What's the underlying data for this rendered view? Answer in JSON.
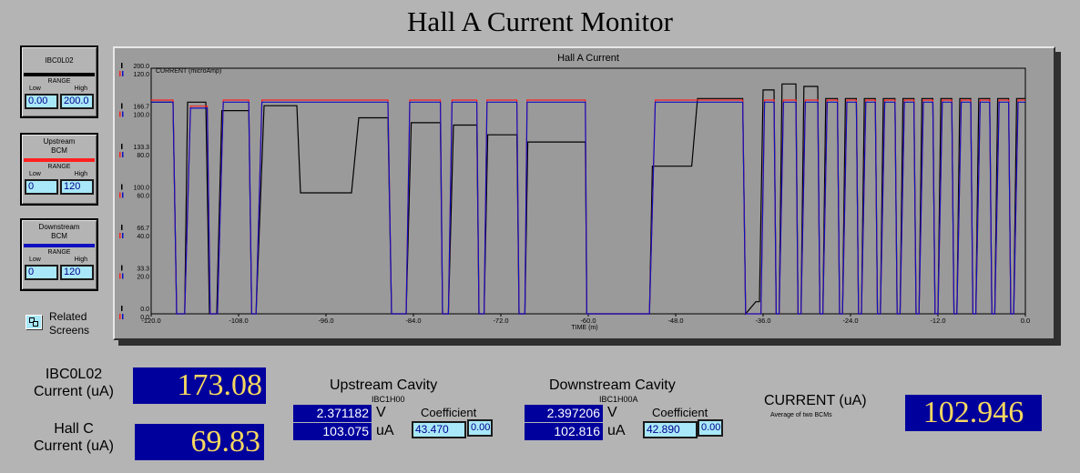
{
  "title": "Hall A Current Monitor",
  "legend": [
    {
      "name_lines": [
        "IBC0L02"
      ],
      "color": "#000000",
      "range_label": "RANGE",
      "low_label": "Low",
      "high_label": "High",
      "low": "0.00",
      "high": "200.0"
    },
    {
      "name_lines": [
        "Upstream",
        "BCM"
      ],
      "color": "#ff2020",
      "range_label": "RANGE",
      "low_label": "Low",
      "high_label": "High",
      "low": "0",
      "high": "120"
    },
    {
      "name_lines": [
        "Downstream",
        "BCM"
      ],
      "color": "#1010c0",
      "range_label": "RANGE",
      "low_label": "Low",
      "high_label": "High",
      "low": "0",
      "high": "120"
    }
  ],
  "related": {
    "label_line1": "Related",
    "label_line2": "Screens"
  },
  "chart_data": {
    "type": "line",
    "title": "Hall A Current",
    "ylabel": "CURRENT (microAmp)",
    "xlabel": "TIME (m)",
    "xlim": [
      -120,
      0
    ],
    "x_ticks": [
      "-120.0",
      "-108.0",
      "-96.0",
      "-84.0",
      "-72.0",
      "-60.0",
      "-48.0",
      "-36.0",
      "-24.0",
      "-12.0",
      "0.0"
    ],
    "y_ticks_series1": [
      "200.0",
      "166.7",
      "133.3",
      "100.0",
      "66.7",
      "33.3",
      "0.0"
    ],
    "y_ticks_series2": [
      "120.0",
      "100.0",
      "80.0",
      "60.0",
      "40.0",
      "20.0",
      "0.0"
    ],
    "series": [
      {
        "name": "IBC0L02",
        "color": "#000000",
        "ylim": [
          0,
          200
        ],
        "points": [
          [
            -120,
            175
          ],
          [
            -117,
            175
          ],
          [
            -116.5,
            0
          ],
          [
            -115.4,
            0
          ],
          [
            -115,
            175
          ],
          [
            -112.5,
            175
          ],
          [
            -112,
            0
          ],
          [
            -111,
            0
          ],
          [
            -110.3,
            168
          ],
          [
            -106.6,
            168
          ],
          [
            -106.2,
            0
          ],
          [
            -105.6,
            0
          ],
          [
            -104.5,
            172
          ],
          [
            -100,
            172
          ],
          [
            -99.5,
            100
          ],
          [
            -92.5,
            100
          ],
          [
            -91.5,
            162
          ],
          [
            -87.5,
            162
          ],
          [
            -87,
            0
          ],
          [
            -85,
            0
          ],
          [
            -84.3,
            158
          ],
          [
            -80.3,
            158
          ],
          [
            -80,
            0
          ],
          [
            -79.2,
            0
          ],
          [
            -78.5,
            156
          ],
          [
            -75.3,
            156
          ],
          [
            -75,
            0
          ],
          [
            -74.3,
            0
          ],
          [
            -73.8,
            148
          ],
          [
            -69.8,
            148
          ],
          [
            -69.5,
            0
          ],
          [
            -68.7,
            0
          ],
          [
            -68.3,
            142
          ],
          [
            -60.4,
            142
          ],
          [
            -60.2,
            0
          ],
          [
            -51.6,
            0
          ],
          [
            -51.2,
            122
          ],
          [
            -45.8,
            122
          ],
          [
            -45,
            178
          ],
          [
            -38.8,
            178
          ],
          [
            -38.4,
            0
          ],
          [
            -37,
            10
          ],
          [
            -36.5,
            10
          ],
          [
            -36,
            185
          ],
          [
            -34.5,
            185
          ],
          [
            -34.2,
            0
          ],
          [
            -33.8,
            0
          ],
          [
            -33.4,
            190
          ],
          [
            -31.5,
            190
          ],
          [
            -31.2,
            0
          ],
          [
            -30.8,
            0
          ],
          [
            -30.4,
            188
          ],
          [
            -28.5,
            188
          ],
          [
            -28.2,
            0
          ],
          [
            -27.8,
            0
          ],
          [
            -27.4,
            178
          ],
          [
            -25.8,
            178
          ],
          [
            -25.5,
            0
          ],
          [
            -25.1,
            0
          ],
          [
            -24.7,
            178
          ],
          [
            -23.2,
            178
          ],
          [
            -22.9,
            0
          ],
          [
            -22.5,
            0
          ],
          [
            -22.1,
            178
          ],
          [
            -20.6,
            178
          ],
          [
            -20.3,
            0
          ],
          [
            -19.9,
            0
          ],
          [
            -19.5,
            178
          ],
          [
            -17.9,
            178
          ],
          [
            -17.6,
            0
          ],
          [
            -17.2,
            0
          ],
          [
            -16.8,
            178
          ],
          [
            -15.3,
            178
          ],
          [
            -15,
            0
          ],
          [
            -14.6,
            0
          ],
          [
            -14.2,
            178
          ],
          [
            -12.7,
            178
          ],
          [
            -12.4,
            0
          ],
          [
            -12,
            0
          ],
          [
            -11.6,
            178
          ],
          [
            -10.1,
            178
          ],
          [
            -9.8,
            0
          ],
          [
            -9.4,
            0
          ],
          [
            -9,
            178
          ],
          [
            -7.5,
            178
          ],
          [
            -7.2,
            0
          ],
          [
            -6.8,
            0
          ],
          [
            -6.4,
            178
          ],
          [
            -4.9,
            178
          ],
          [
            -4.6,
            0
          ],
          [
            -4.2,
            0
          ],
          [
            -3.8,
            178
          ],
          [
            -2.3,
            178
          ],
          [
            -2,
            0
          ],
          [
            -1.6,
            0
          ],
          [
            -1.2,
            178
          ],
          [
            0,
            178
          ]
        ]
      },
      {
        "name": "Upstream BCM",
        "color": "#ff2020",
        "ylim": [
          0,
          120
        ],
        "points": [
          [
            -120,
            106
          ],
          [
            -117,
            106
          ],
          [
            -116.5,
            0
          ],
          [
            -115.4,
            0
          ],
          [
            -114.6,
            103
          ],
          [
            -112.3,
            103
          ],
          [
            -111.9,
            0
          ],
          [
            -110.9,
            0
          ],
          [
            -110.1,
            106
          ],
          [
            -106.6,
            106
          ],
          [
            -106.2,
            0
          ],
          [
            -105.6,
            0
          ],
          [
            -104.8,
            106
          ],
          [
            -100,
            106
          ],
          [
            -99.6,
            106
          ],
          [
            -92.5,
            106
          ],
          [
            -91.7,
            106
          ],
          [
            -87.5,
            106
          ],
          [
            -87,
            0
          ],
          [
            -85,
            0
          ],
          [
            -84.5,
            106
          ],
          [
            -80.3,
            106
          ],
          [
            -80,
            0
          ],
          [
            -79.2,
            0
          ],
          [
            -78.7,
            106
          ],
          [
            -75.3,
            106
          ],
          [
            -75,
            0
          ],
          [
            -74.3,
            0
          ],
          [
            -73.9,
            106
          ],
          [
            -69.8,
            106
          ],
          [
            -69.5,
            0
          ],
          [
            -68.7,
            0
          ],
          [
            -68.4,
            106
          ],
          [
            -60.4,
            106
          ],
          [
            -60.2,
            0
          ],
          [
            -51.6,
            0
          ],
          [
            -50.8,
            106
          ],
          [
            -38.8,
            106
          ],
          [
            -38.4,
            0
          ],
          [
            -36.3,
            0
          ],
          [
            -35.8,
            106
          ],
          [
            -34.5,
            106
          ],
          [
            -34.2,
            0
          ],
          [
            -33.8,
            0
          ],
          [
            -33.2,
            106
          ],
          [
            -31.5,
            106
          ],
          [
            -31.2,
            0
          ],
          [
            -30.8,
            0
          ],
          [
            -30.2,
            106
          ],
          [
            -28.5,
            106
          ],
          [
            -28.2,
            0
          ],
          [
            -27.8,
            0
          ],
          [
            -27.2,
            106
          ],
          [
            -25.8,
            106
          ],
          [
            -25.5,
            0
          ],
          [
            -25.1,
            0
          ],
          [
            -24.5,
            106
          ],
          [
            -23.2,
            106
          ],
          [
            -22.9,
            0
          ],
          [
            -22.5,
            0
          ],
          [
            -21.9,
            106
          ],
          [
            -20.6,
            106
          ],
          [
            -20.3,
            0
          ],
          [
            -19.9,
            0
          ],
          [
            -19.3,
            106
          ],
          [
            -17.9,
            106
          ],
          [
            -17.6,
            0
          ],
          [
            -17.2,
            0
          ],
          [
            -16.6,
            106
          ],
          [
            -15.3,
            106
          ],
          [
            -15,
            0
          ],
          [
            -14.6,
            0
          ],
          [
            -14,
            106
          ],
          [
            -12.7,
            106
          ],
          [
            -12.4,
            0
          ],
          [
            -12,
            0
          ],
          [
            -11.4,
            106
          ],
          [
            -10.1,
            106
          ],
          [
            -9.8,
            0
          ],
          [
            -9.4,
            0
          ],
          [
            -8.8,
            106
          ],
          [
            -7.5,
            106
          ],
          [
            -7.2,
            0
          ],
          [
            -6.8,
            0
          ],
          [
            -6.2,
            106
          ],
          [
            -4.9,
            106
          ],
          [
            -4.6,
            0
          ],
          [
            -4.2,
            0
          ],
          [
            -3.6,
            106
          ],
          [
            -2.3,
            106
          ],
          [
            -2,
            0
          ],
          [
            -1.6,
            0
          ],
          [
            -1,
            106
          ],
          [
            0,
            106
          ]
        ]
      },
      {
        "name": "Downstream BCM",
        "color": "#1010c0",
        "ylim": [
          0,
          120
        ],
        "points": [
          [
            -120,
            105
          ],
          [
            -117,
            105
          ],
          [
            -116.5,
            0
          ],
          [
            -115.4,
            0
          ],
          [
            -114.6,
            102
          ],
          [
            -112.3,
            102
          ],
          [
            -111.9,
            0
          ],
          [
            -110.9,
            0
          ],
          [
            -110.1,
            105
          ],
          [
            -106.6,
            105
          ],
          [
            -106.2,
            0
          ],
          [
            -105.6,
            0
          ],
          [
            -104.8,
            105
          ],
          [
            -100,
            105
          ],
          [
            -99.6,
            105
          ],
          [
            -92.5,
            105
          ],
          [
            -91.7,
            105
          ],
          [
            -87.5,
            105
          ],
          [
            -87,
            0
          ],
          [
            -85,
            0
          ],
          [
            -84.5,
            105
          ],
          [
            -80.3,
            105
          ],
          [
            -80,
            0
          ],
          [
            -79.2,
            0
          ],
          [
            -78.7,
            105
          ],
          [
            -75.3,
            105
          ],
          [
            -75,
            0
          ],
          [
            -74.3,
            0
          ],
          [
            -73.9,
            105
          ],
          [
            -69.8,
            105
          ],
          [
            -69.5,
            0
          ],
          [
            -68.7,
            0
          ],
          [
            -68.4,
            105
          ],
          [
            -60.4,
            105
          ],
          [
            -60.2,
            0
          ],
          [
            -51.6,
            0
          ],
          [
            -50.8,
            105
          ],
          [
            -38.8,
            105
          ],
          [
            -38.4,
            0
          ],
          [
            -36.3,
            0
          ],
          [
            -35.8,
            105
          ],
          [
            -34.5,
            105
          ],
          [
            -34.2,
            0
          ],
          [
            -33.8,
            0
          ],
          [
            -33.2,
            105
          ],
          [
            -31.5,
            105
          ],
          [
            -31.2,
            0
          ],
          [
            -30.8,
            0
          ],
          [
            -30.2,
            105
          ],
          [
            -28.5,
            105
          ],
          [
            -28.2,
            0
          ],
          [
            -27.8,
            0
          ],
          [
            -27.2,
            105
          ],
          [
            -25.8,
            105
          ],
          [
            -25.5,
            0
          ],
          [
            -25.1,
            0
          ],
          [
            -24.5,
            105
          ],
          [
            -23.2,
            105
          ],
          [
            -22.9,
            0
          ],
          [
            -22.5,
            0
          ],
          [
            -21.9,
            105
          ],
          [
            -20.6,
            105
          ],
          [
            -20.3,
            0
          ],
          [
            -19.9,
            0
          ],
          [
            -19.3,
            105
          ],
          [
            -17.9,
            105
          ],
          [
            -17.6,
            0
          ],
          [
            -17.2,
            0
          ],
          [
            -16.6,
            105
          ],
          [
            -15.3,
            105
          ],
          [
            -15,
            0
          ],
          [
            -14.6,
            0
          ],
          [
            -14,
            105
          ],
          [
            -12.7,
            105
          ],
          [
            -12.4,
            0
          ],
          [
            -12,
            0
          ],
          [
            -11.4,
            105
          ],
          [
            -10.1,
            105
          ],
          [
            -9.8,
            0
          ],
          [
            -9.4,
            0
          ],
          [
            -8.8,
            105
          ],
          [
            -7.5,
            105
          ],
          [
            -7.2,
            0
          ],
          [
            -6.8,
            0
          ],
          [
            -6.2,
            105
          ],
          [
            -4.9,
            105
          ],
          [
            -4.6,
            0
          ],
          [
            -4.2,
            0
          ],
          [
            -3.6,
            105
          ],
          [
            -2.3,
            105
          ],
          [
            -2,
            0
          ],
          [
            -1.6,
            0
          ],
          [
            -1,
            105
          ],
          [
            0,
            105
          ]
        ]
      }
    ]
  },
  "readouts": {
    "ibc_label_1": "IBC0L02",
    "ibc_label_2": "Current (uA)",
    "ibc_value": "173.08",
    "hallc_label_1": "Hall C",
    "hallc_label_2": "Current (uA)",
    "hallc_value": "69.83"
  },
  "upstream": {
    "title": "Upstream Cavity",
    "pv": "IBC1H00",
    "voltage": "2.371182",
    "voltage_unit": "V",
    "current": "103.075",
    "current_unit": "uA",
    "coef_label": "Coefficient",
    "coefficient": "43.470",
    "offset": "0.00"
  },
  "downstream": {
    "title": "Downstream Cavity",
    "pv": "IBC1H00A",
    "voltage": "2.397206",
    "voltage_unit": "V",
    "current": "102.816",
    "current_unit": "uA",
    "coef_label": "Coefficient",
    "coefficient": "42.890",
    "offset": "0.00"
  },
  "average": {
    "label": "CURRENT (uA)",
    "sublabel": "Average of two BCMs",
    "value": "102.946"
  }
}
